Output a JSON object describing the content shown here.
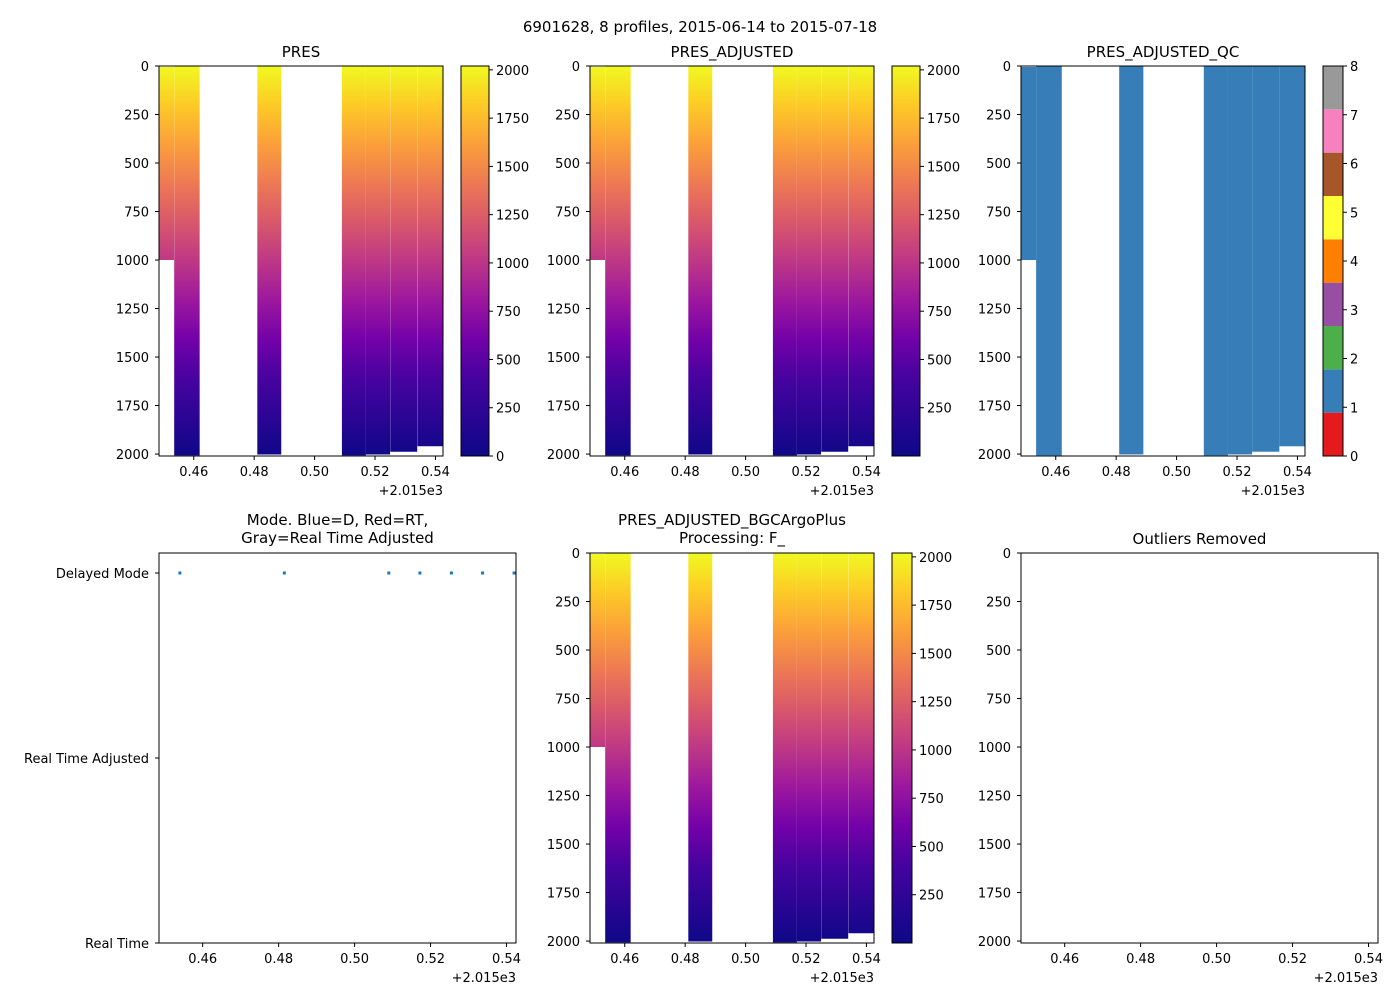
{
  "figure": {
    "suptitle": "6901628, 8 profiles, 2015-06-14 to 2015-07-18"
  },
  "chart_data": [
    {
      "id": "pres",
      "type": "heatmap",
      "title": "PRES",
      "x_offset_label": "+2.015e3",
      "xlim": [
        0.4485,
        0.5425
      ],
      "x_ticks": [
        "0.46",
        "0.48",
        "0.50",
        "0.52",
        "0.54"
      ],
      "y_ticks": [
        "0",
        "250",
        "500",
        "750",
        "1000",
        "1250",
        "1500",
        "1750",
        "2000"
      ],
      "ylim": [
        2010,
        0
      ],
      "colorbar": {
        "cmap": "plasma_r",
        "range": [
          0,
          2020
        ],
        "ticks": [
          "0",
          "250",
          "500",
          "750",
          "1000",
          "1250",
          "1500",
          "1750",
          "2000"
        ]
      },
      "profiles": [
        {
          "x0": 0.4485,
          "x1": 0.4535,
          "pmin": 5,
          "pmax": 1000
        },
        {
          "x0": 0.4535,
          "x1": 0.462,
          "pmin": 0,
          "pmax": 2007
        },
        {
          "x0": 0.481,
          "x1": 0.489,
          "pmin": 0,
          "pmax": 2002
        },
        {
          "x0": 0.509,
          "x1": 0.517,
          "pmin": 0,
          "pmax": 2007
        },
        {
          "x0": 0.517,
          "x1": 0.525,
          "pmin": 0,
          "pmax": 2002
        },
        {
          "x0": 0.525,
          "x1": 0.534,
          "pmin": 0,
          "pmax": 1988
        },
        {
          "x0": 0.534,
          "x1": 0.5425,
          "pmin": 0,
          "pmax": 1960
        }
      ]
    },
    {
      "id": "pres_adjusted",
      "type": "heatmap",
      "title": "PRES_ADJUSTED",
      "x_offset_label": "+2.015e3",
      "xlim": [
        0.4485,
        0.5425
      ],
      "x_ticks": [
        "0.46",
        "0.48",
        "0.50",
        "0.52",
        "0.54"
      ],
      "y_ticks": [
        "0",
        "250",
        "500",
        "750",
        "1000",
        "1250",
        "1500",
        "1750",
        "2000"
      ],
      "ylim": [
        2010,
        0
      ],
      "colorbar": {
        "cmap": "plasma_r",
        "range": [
          0,
          2020
        ],
        "ticks": [
          "250",
          "500",
          "750",
          "1000",
          "1250",
          "1500",
          "1750",
          "2000"
        ]
      },
      "profiles": [
        {
          "x0": 0.4485,
          "x1": 0.4535,
          "pmin": 5,
          "pmax": 1000
        },
        {
          "x0": 0.4535,
          "x1": 0.462,
          "pmin": 0,
          "pmax": 2007
        },
        {
          "x0": 0.481,
          "x1": 0.489,
          "pmin": 0,
          "pmax": 2002
        },
        {
          "x0": 0.509,
          "x1": 0.517,
          "pmin": 0,
          "pmax": 2007
        },
        {
          "x0": 0.517,
          "x1": 0.525,
          "pmin": 0,
          "pmax": 2002
        },
        {
          "x0": 0.525,
          "x1": 0.534,
          "pmin": 0,
          "pmax": 1988
        },
        {
          "x0": 0.534,
          "x1": 0.5425,
          "pmin": 0,
          "pmax": 1960
        }
      ]
    },
    {
      "id": "pres_adjusted_qc",
      "type": "heatmap",
      "title": "PRES_ADJUSTED_QC",
      "x_offset_label": "+2.015e3",
      "xlim": [
        0.4485,
        0.5425
      ],
      "x_ticks": [
        "0.46",
        "0.48",
        "0.50",
        "0.52",
        "0.54"
      ],
      "y_ticks": [
        "0",
        "250",
        "500",
        "750",
        "1000",
        "1250",
        "1500",
        "1750",
        "2000"
      ],
      "ylim": [
        2010,
        0
      ],
      "qc_value": 1,
      "colorbar": {
        "type": "discrete",
        "range": [
          0,
          8
        ],
        "ticks": [
          "0",
          "1",
          "2",
          "3",
          "4",
          "5",
          "6",
          "7",
          "8"
        ],
        "colors": [
          "#e41a1c",
          "#377eb8",
          "#4daf4a",
          "#984ea3",
          "#ff7f00",
          "#ffff33",
          "#a65628",
          "#f781bf",
          "#999999"
        ]
      },
      "profiles": [
        {
          "x0": 0.4485,
          "x1": 0.4535,
          "pmin": 5,
          "pmax": 1000
        },
        {
          "x0": 0.4535,
          "x1": 0.462,
          "pmin": 0,
          "pmax": 2007
        },
        {
          "x0": 0.481,
          "x1": 0.489,
          "pmin": 0,
          "pmax": 2002
        },
        {
          "x0": 0.509,
          "x1": 0.517,
          "pmin": 0,
          "pmax": 2007
        },
        {
          "x0": 0.517,
          "x1": 0.525,
          "pmin": 0,
          "pmax": 2002
        },
        {
          "x0": 0.525,
          "x1": 0.534,
          "pmin": 0,
          "pmax": 1988
        },
        {
          "x0": 0.534,
          "x1": 0.5425,
          "pmin": 0,
          "pmax": 1960
        }
      ]
    },
    {
      "id": "mode",
      "type": "scatter",
      "title": "Mode. Blue=D, Red=RT,",
      "title_line2": "Gray=Real Time Adjusted",
      "x_offset_label": "+2.015e3",
      "xlim": [
        0.4485,
        0.5425
      ],
      "x_ticks": [
        "0.46",
        "0.48",
        "0.50",
        "0.52",
        "0.54"
      ],
      "y_categories": [
        "Delayed Mode",
        "Real Time Adjusted",
        "Real Time"
      ],
      "points": [
        {
          "x": 0.454,
          "mode": "Delayed Mode"
        },
        {
          "x": 0.4815,
          "mode": "Delayed Mode"
        },
        {
          "x": 0.509,
          "mode": "Delayed Mode"
        },
        {
          "x": 0.5172,
          "mode": "Delayed Mode"
        },
        {
          "x": 0.5255,
          "mode": "Delayed Mode"
        },
        {
          "x": 0.5337,
          "mode": "Delayed Mode"
        },
        {
          "x": 0.542,
          "mode": "Delayed Mode"
        }
      ],
      "point_color": "#1f77b4"
    },
    {
      "id": "pres_bgc",
      "type": "heatmap",
      "title": "PRES_ADJUSTED_BGCArgoPlus",
      "title_line2": "Processing: F_",
      "x_offset_label": "+2.015e3",
      "xlim": [
        0.4485,
        0.5425
      ],
      "x_ticks": [
        "0.46",
        "0.48",
        "0.50",
        "0.52",
        "0.54"
      ],
      "y_ticks": [
        "0",
        "250",
        "500",
        "750",
        "1000",
        "1250",
        "1500",
        "1750",
        "2000"
      ],
      "ylim": [
        2010,
        0
      ],
      "colorbar": {
        "cmap": "plasma_r",
        "range": [
          0,
          2020
        ],
        "ticks": [
          "250",
          "500",
          "750",
          "1000",
          "1250",
          "1500",
          "1750",
          "2000"
        ]
      },
      "profiles": [
        {
          "x0": 0.4485,
          "x1": 0.4535,
          "pmin": 5,
          "pmax": 1000
        },
        {
          "x0": 0.4535,
          "x1": 0.462,
          "pmin": 0,
          "pmax": 2007
        },
        {
          "x0": 0.481,
          "x1": 0.489,
          "pmin": 0,
          "pmax": 2002
        },
        {
          "x0": 0.509,
          "x1": 0.517,
          "pmin": 0,
          "pmax": 2007
        },
        {
          "x0": 0.517,
          "x1": 0.525,
          "pmin": 0,
          "pmax": 2002
        },
        {
          "x0": 0.525,
          "x1": 0.534,
          "pmin": 0,
          "pmax": 1988
        },
        {
          "x0": 0.534,
          "x1": 0.5425,
          "pmin": 0,
          "pmax": 1960
        }
      ]
    },
    {
      "id": "outliers",
      "type": "scatter",
      "title": "Outliers Removed",
      "x_offset_label": "+2.015e3",
      "xlim": [
        0.4485,
        0.5425
      ],
      "x_ticks": [
        "0.46",
        "0.48",
        "0.50",
        "0.52",
        "0.54"
      ],
      "y_ticks": [
        "0",
        "250",
        "500",
        "750",
        "1000",
        "1250",
        "1500",
        "1750",
        "2000"
      ],
      "ylim": [
        2010,
        0
      ],
      "points": []
    }
  ]
}
